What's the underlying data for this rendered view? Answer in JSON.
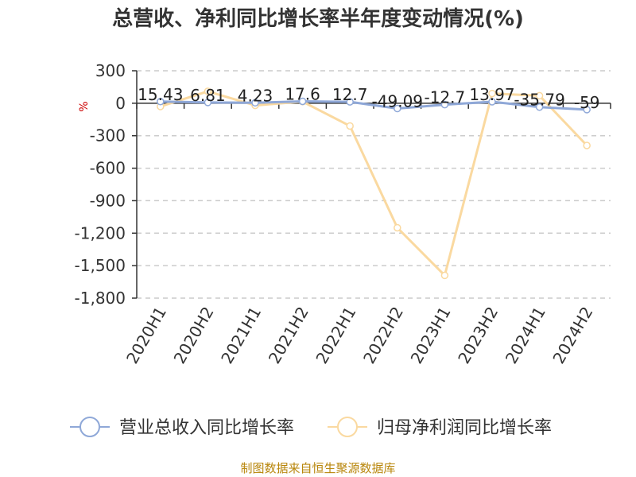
{
  "chart_data": {
    "type": "line",
    "title": "总营收、净利同比增长率半年度变动情况(%)",
    "ylabel": "%",
    "ylim": [
      -1800,
      300
    ],
    "yticks": [
      300,
      0,
      -300,
      -600,
      -900,
      -1200,
      -1500,
      -1800
    ],
    "ytick_labels": [
      "300",
      "0",
      "-300",
      "-600",
      "-900",
      "-1,200",
      "-1,500",
      "-1,800"
    ],
    "categories": [
      "2020H1",
      "2020H2",
      "2021H1",
      "2021H2",
      "2022H1",
      "2022H2",
      "2023H1",
      "2023H2",
      "2024H1",
      "2024H2"
    ],
    "series": [
      {
        "name": "营业总收入同比增长率",
        "color": "#8fa8d8",
        "values": [
          15.43,
          6.81,
          4.23,
          17.6,
          12.7,
          -49.09,
          -12.7,
          13.97,
          -35.79,
          -59
        ],
        "labels": [
          "15.43",
          "6.81",
          "4.23",
          "17.6",
          "12.7",
          "-49.09",
          "-12.7",
          "13.97",
          "-35.79",
          "-59"
        ]
      },
      {
        "name": "归母净利润同比增长率",
        "color": "#fad9a0",
        "values": [
          -30,
          110,
          -20,
          15,
          -210,
          -1150,
          -1590,
          90,
          70,
          -390
        ]
      }
    ],
    "grid": true,
    "legend_position": "bottom",
    "source": "制图数据来自恒生聚源数据库"
  }
}
